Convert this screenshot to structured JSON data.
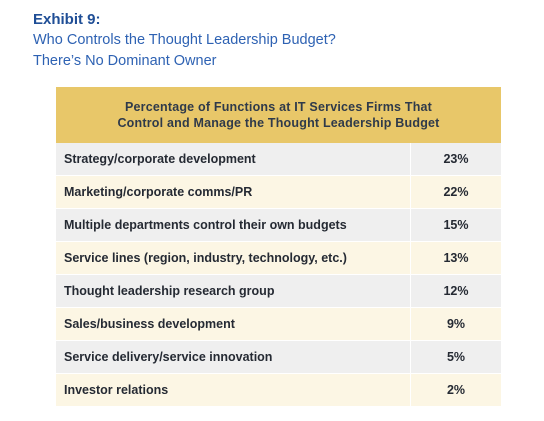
{
  "exhibit": {
    "label": "Exhibit 9:",
    "subtitle_lines": [
      "Who Controls the Thought Leadership Budget?",
      "There’s No Dominant Owner"
    ]
  },
  "colors": {
    "exhibit_label": "#1f4e96",
    "subtitle": "#2e62b3",
    "header_background": "#e8c769",
    "row_gray": "#efefef",
    "row_cream": "#fcf6e4",
    "text": "#252a33"
  },
  "chart_data": {
    "type": "table",
    "header_lines": [
      "Percentage of Functions at IT Services Firms That",
      "Control and Manage the Thought Leadership Budget"
    ],
    "rows": [
      {
        "label": "Strategy/corporate development",
        "value": "23%"
      },
      {
        "label": "Marketing/corporate comms/PR",
        "value": "22%"
      },
      {
        "label": "Multiple departments control their own budgets",
        "value": "15%"
      },
      {
        "label": "Service lines (region, industry, technology, etc.)",
        "value": "13%"
      },
      {
        "label": "Thought leadership research group",
        "value": "12%"
      },
      {
        "label": "Sales/business development",
        "value": "9%"
      },
      {
        "label": "Service delivery/service innovation",
        "value": "5%"
      },
      {
        "label": "Investor relations",
        "value": "2%"
      }
    ]
  }
}
